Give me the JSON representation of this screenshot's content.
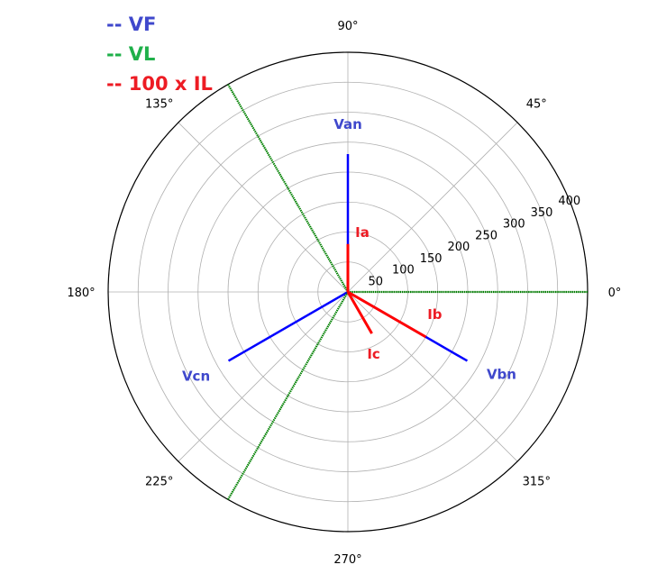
{
  "chart_data": {
    "type": "polar",
    "angle_tick_labels": [
      "0°",
      "45°",
      "90°",
      "135°",
      "180°",
      "225°",
      "270°",
      "315°"
    ],
    "radial_tick_labels": [
      "50",
      "100",
      "150",
      "200",
      "250",
      "300",
      "350",
      "400"
    ],
    "rlim": [
      0,
      400
    ],
    "grid": true,
    "legend": [
      {
        "label": "-- VF",
        "color": "#3f48cc"
      },
      {
        "label": "-- VL",
        "color": "#1fb04a"
      },
      {
        "label": "-- 100 x IL",
        "color": "#ed1c24"
      }
    ],
    "series": [
      {
        "name": "VF",
        "color": "#0000ff",
        "phasors": [
          {
            "label": "Van",
            "angle_deg": 90,
            "magnitude": 230
          },
          {
            "label": "Vbn",
            "angle_deg": -30,
            "magnitude": 230
          },
          {
            "label": "Vcn",
            "angle_deg": 210,
            "magnitude": 230
          }
        ]
      },
      {
        "name": "VL",
        "color": "#008000",
        "phasors": [
          {
            "angle_deg": 0,
            "magnitude": 400
          },
          {
            "angle_deg": 120,
            "magnitude": 400
          },
          {
            "angle_deg": 240,
            "magnitude": 400
          }
        ]
      },
      {
        "name": "100 x IL",
        "color": "#ff0000",
        "phasors": [
          {
            "label": "Ia",
            "angle_deg": 90,
            "magnitude": 80
          },
          {
            "label": "Ib",
            "angle_deg": -30,
            "magnitude": 150
          },
          {
            "label": "Ic",
            "angle_deg": -60,
            "magnitude": 80
          }
        ]
      }
    ],
    "phasor_label_colors": {
      "voltage": "#3f48cc",
      "current": "#ed1c24"
    }
  }
}
